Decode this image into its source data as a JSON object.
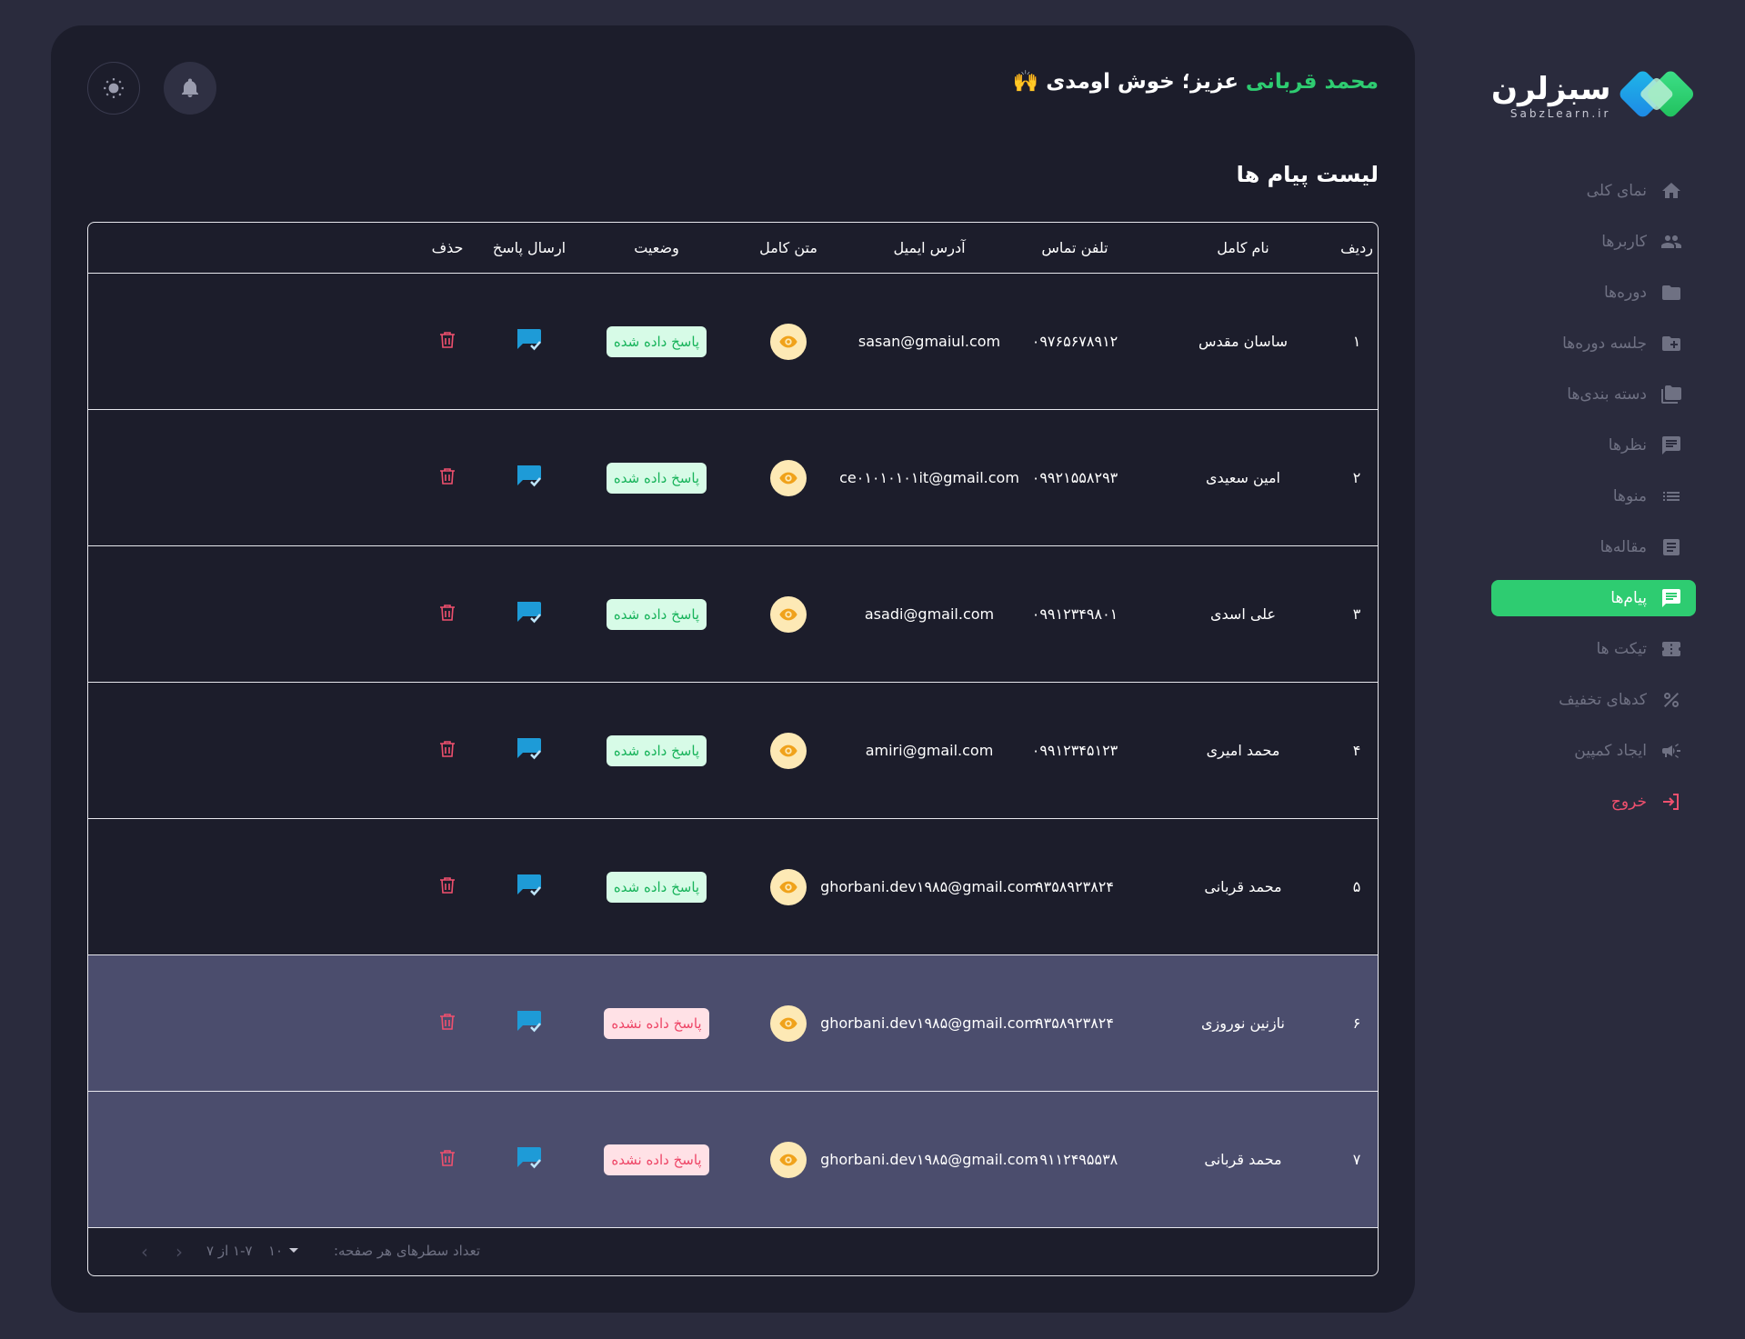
{
  "brand": {
    "title": "سبزلرن",
    "subtitle": "SabzLearn.ir"
  },
  "sidebar": {
    "items": [
      {
        "label": "نمای کلی",
        "icon": "home-icon"
      },
      {
        "label": "کاربرها",
        "icon": "users-icon"
      },
      {
        "label": "دوره‌ها",
        "icon": "folder-icon"
      },
      {
        "label": "جلسه دوره‌ها",
        "icon": "folder-plus-icon"
      },
      {
        "label": "دسته بندی‌ها",
        "icon": "folders-icon"
      },
      {
        "label": "نظرها",
        "icon": "comment-icon"
      },
      {
        "label": "منوها",
        "icon": "list-icon"
      },
      {
        "label": "مقاله‌ها",
        "icon": "article-icon"
      },
      {
        "label": "پیام‌ها",
        "icon": "message-icon",
        "active": true
      },
      {
        "label": "تیکت ها",
        "icon": "ticket-icon"
      },
      {
        "label": "کدهای تخفیف",
        "icon": "percent-icon"
      },
      {
        "label": "ایجاد کمپین",
        "icon": "megaphone-icon"
      }
    ],
    "logout": {
      "label": "خروج",
      "icon": "logout-icon"
    }
  },
  "header": {
    "greeting_name": "محمد قربانی",
    "greeting_rest": " عزیز؛ خوش اومدی 🙌"
  },
  "page": {
    "title": "لیست پیام ها"
  },
  "table": {
    "columns": {
      "idx": "ردیف",
      "name": "نام کامل",
      "phone": "تلفن تماس",
      "email": "آدرس ایمیل",
      "full_text": "متن کامل",
      "status": "وضعیت",
      "reply": "ارسال پاسخ",
      "delete": "حذف"
    },
    "rows": [
      {
        "idx": "۱",
        "name": "ساسان مقدس",
        "phone": "۰۹۷۶۵۶۷۸۹۱۲",
        "email": "sasan@gmaiul.com",
        "status": "پاسخ داده شده",
        "answered": true
      },
      {
        "idx": "۲",
        "name": "امین سعیدی",
        "phone": "۰۹۹۲۱۵۵۸۲۹۳",
        "email": "ce۰۱۰۱۰۱۰۱it@gmail.com",
        "status": "پاسخ داده شده",
        "answered": true
      },
      {
        "idx": "۳",
        "name": "علی اسدی",
        "phone": "۰۹۹۱۲۳۴۹۸۰۱",
        "email": "asadi@gmail.com",
        "status": "پاسخ داده شده",
        "answered": true
      },
      {
        "idx": "۴",
        "name": "محمد امیری",
        "phone": "۰۹۹۱۲۳۴۵۱۲۳",
        "email": "amiri@gmail.com",
        "status": "پاسخ داده شده",
        "answered": true
      },
      {
        "idx": "۵",
        "name": "محمد قربانی",
        "phone": "۹۳۵۸۹۲۳۸۲۴",
        "email": "ghorbani.dev۱۹۸۵@gmail.com",
        "status": "پاسخ داده شده",
        "answered": true
      },
      {
        "idx": "۶",
        "name": "نازنین نوروزی",
        "phone": "۹۳۵۸۹۲۳۸۲۴",
        "email": "ghorbani.dev۱۹۸۵@gmail.com",
        "status": "پاسخ داده نشده",
        "answered": false
      },
      {
        "idx": "۷",
        "name": "محمد قربانی",
        "phone": "۰۹۱۱۲۴۹۵۵۳۸",
        "email": "ghorbani.dev۱۹۸۵@gmail.com",
        "status": "پاسخ داده نشده",
        "answered": false
      }
    ]
  },
  "pagination": {
    "rows_label": "تعداد سطرهای هر صفحه:",
    "rows_value": "۱۰",
    "range": "۱-۷ از ۷"
  },
  "colors": {
    "accent": "#2ecc71",
    "danger": "#f0506e",
    "reply_icon": "#1e9bd7",
    "eye_bg": "#fde9b5"
  }
}
